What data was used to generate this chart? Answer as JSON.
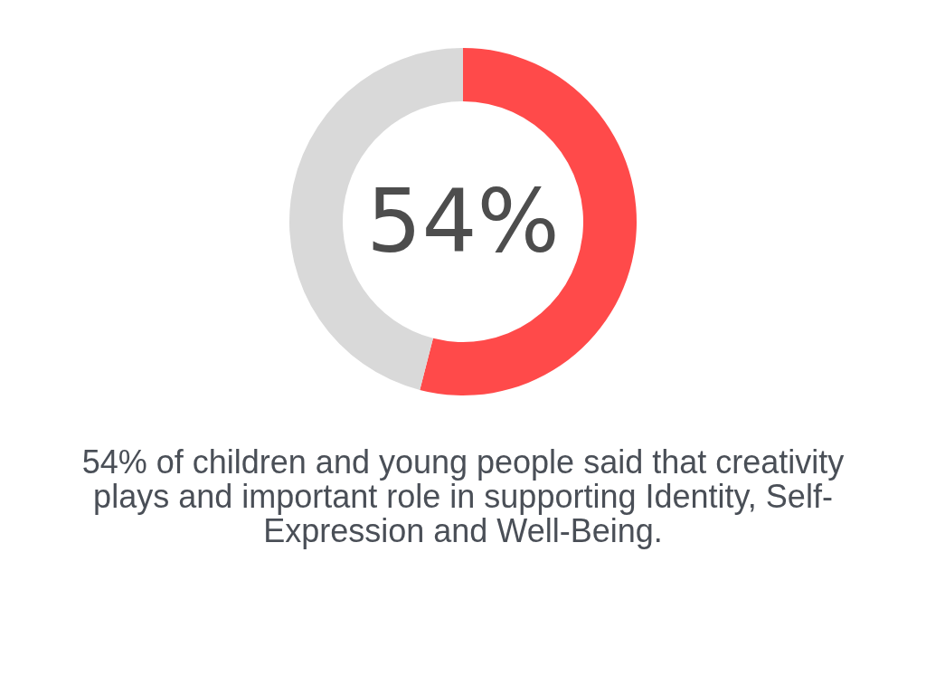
{
  "chart_data": {
    "type": "donut",
    "categories": [
      null,
      null
    ],
    "values": [
      54,
      46
    ],
    "colors": [
      "#ff4a4a",
      "#d9d9d9"
    ],
    "value_labels": [
      "54%",
      null
    ],
    "annotations": [
      "54% of children and young people said that creativity plays and important role in supporting Identity, Self-Expression and Well-Being."
    ]
  }
}
